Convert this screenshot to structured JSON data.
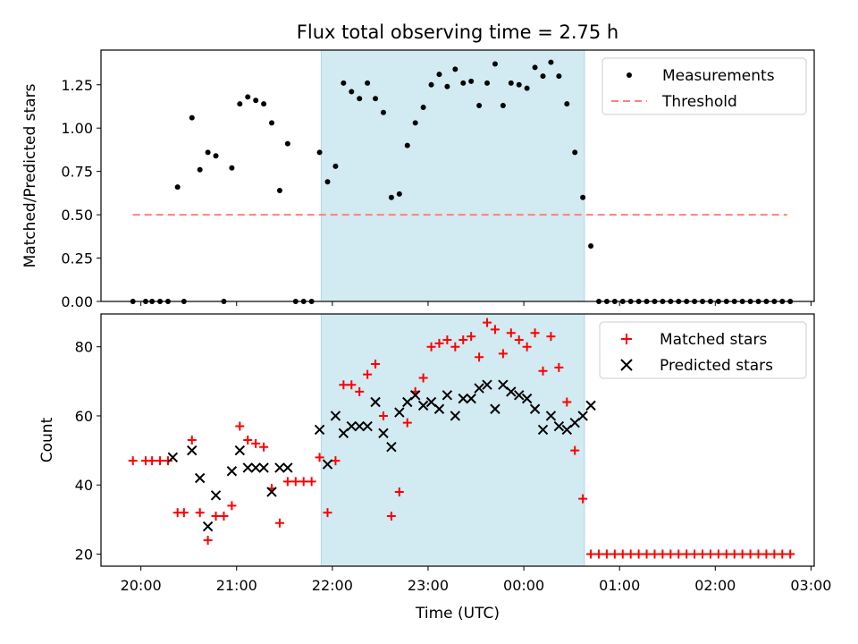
{
  "title": "Flux total observing time = 2.75 h",
  "colors": {
    "observing_window": "#add8e6",
    "threshold": "#ff7f7f",
    "measurements": "#000000",
    "matched": "#ff0000",
    "predicted": "#000000"
  },
  "chart_data": [
    {
      "type": "scatter",
      "title": "Flux total observing time = 2.75 h",
      "xlabel": "",
      "ylabel": "Matched/Predicted stars",
      "xlim": [
        "19:35",
        "03:02"
      ],
      "ylim": [
        0,
        1.45
      ],
      "yticks": [
        "0.00",
        "0.25",
        "0.50",
        "0.75",
        "1.00",
        "1.25"
      ],
      "xticks": [
        "20:00",
        "21:00",
        "22:00",
        "23:00",
        "00:00",
        "01:00",
        "02:00",
        "03:00"
      ],
      "xtick_labels_visible": false,
      "legend_position": "top-right",
      "shaded_region": {
        "from": "21:53",
        "to": "00:38"
      },
      "threshold": {
        "name": "Threshold",
        "value": 0.5,
        "from": "19:55",
        "to": "02:45"
      },
      "series": [
        {
          "name": "Measurements",
          "marker": "dot",
          "points": [
            [
              "19:55",
              0.0
            ],
            [
              "20:03",
              0.0
            ],
            [
              "20:07",
              0.0
            ],
            [
              "20:12",
              0.0
            ],
            [
              "20:17",
              0.0
            ],
            [
              "20:23",
              0.66
            ],
            [
              "20:27",
              0.0
            ],
            [
              "20:32",
              1.06
            ],
            [
              "20:37",
              0.76
            ],
            [
              "20:42",
              0.86
            ],
            [
              "20:47",
              0.84
            ],
            [
              "20:52",
              0.0
            ],
            [
              "20:57",
              0.77
            ],
            [
              "21:02",
              1.14
            ],
            [
              "21:07",
              1.18
            ],
            [
              "21:12",
              1.16
            ],
            [
              "21:17",
              1.14
            ],
            [
              "21:22",
              1.03
            ],
            [
              "21:27",
              0.64
            ],
            [
              "21:32",
              0.91
            ],
            [
              "21:37",
              0.0
            ],
            [
              "21:42",
              0.0
            ],
            [
              "21:47",
              0.0
            ],
            [
              "21:52",
              0.86
            ],
            [
              "21:57",
              0.69
            ],
            [
              "22:02",
              0.78
            ],
            [
              "22:07",
              1.26
            ],
            [
              "22:12",
              1.21
            ],
            [
              "22:17",
              1.17
            ],
            [
              "22:22",
              1.26
            ],
            [
              "22:27",
              1.17
            ],
            [
              "22:32",
              1.09
            ],
            [
              "22:37",
              0.6
            ],
            [
              "22:42",
              0.62
            ],
            [
              "22:47",
              0.9
            ],
            [
              "22:52",
              1.03
            ],
            [
              "22:57",
              1.12
            ],
            [
              "23:02",
              1.25
            ],
            [
              "23:07",
              1.31
            ],
            [
              "23:12",
              1.24
            ],
            [
              "23:17",
              1.34
            ],
            [
              "23:22",
              1.26
            ],
            [
              "23:27",
              1.27
            ],
            [
              "23:32",
              1.13
            ],
            [
              "23:37",
              1.26
            ],
            [
              "23:42",
              1.37
            ],
            [
              "23:47",
              1.13
            ],
            [
              "23:52",
              1.26
            ],
            [
              "23:57",
              1.25
            ],
            [
              "00:02",
              1.23
            ],
            [
              "00:07",
              1.35
            ],
            [
              "00:12",
              1.3
            ],
            [
              "00:17",
              1.38
            ],
            [
              "00:22",
              1.3
            ],
            [
              "00:27",
              1.14
            ],
            [
              "00:32",
              0.86
            ],
            [
              "00:37",
              0.6
            ],
            [
              "00:42",
              0.32
            ],
            [
              "00:47",
              0.0
            ],
            [
              "00:52",
              0.0
            ],
            [
              "00:57",
              0.0
            ],
            [
              "01:02",
              0.0
            ],
            [
              "01:07",
              0.0
            ],
            [
              "01:12",
              0.0
            ],
            [
              "01:17",
              0.0
            ],
            [
              "01:22",
              0.0
            ],
            [
              "01:27",
              0.0
            ],
            [
              "01:32",
              0.0
            ],
            [
              "01:37",
              0.0
            ],
            [
              "01:42",
              0.0
            ],
            [
              "01:47",
              0.0
            ],
            [
              "01:52",
              0.0
            ],
            [
              "01:57",
              0.0
            ],
            [
              "02:02",
              0.0
            ],
            [
              "02:07",
              0.0
            ],
            [
              "02:12",
              0.0
            ],
            [
              "02:17",
              0.0
            ],
            [
              "02:22",
              0.0
            ],
            [
              "02:27",
              0.0
            ],
            [
              "02:32",
              0.0
            ],
            [
              "02:37",
              0.0
            ],
            [
              "02:42",
              0.0
            ],
            [
              "02:47",
              0.0
            ]
          ]
        },
        {
          "name": "Threshold",
          "marker": "dashed-line",
          "points": [
            [
              "19:55",
              0.5
            ],
            [
              "02:45",
              0.5
            ]
          ]
        }
      ]
    },
    {
      "type": "scatter",
      "title": "",
      "xlabel": "Time (UTC)",
      "ylabel": "Count",
      "xlim": [
        "19:35",
        "03:02"
      ],
      "ylim": [
        16.5,
        89.5
      ],
      "yticks": [
        "20",
        "40",
        "60",
        "80"
      ],
      "xticks": [
        "20:00",
        "21:00",
        "22:00",
        "23:00",
        "00:00",
        "01:00",
        "02:00",
        "03:00"
      ],
      "legend_position": "top-right",
      "shaded_region": {
        "from": "21:53",
        "to": "00:38"
      },
      "series": [
        {
          "name": "Matched stars",
          "marker": "plus",
          "points": [
            [
              "19:55",
              47
            ],
            [
              "20:03",
              47
            ],
            [
              "20:07",
              47
            ],
            [
              "20:12",
              47
            ],
            [
              "20:17",
              47
            ],
            [
              "20:23",
              32
            ],
            [
              "20:27",
              32
            ],
            [
              "20:32",
              53
            ],
            [
              "20:37",
              32
            ],
            [
              "20:42",
              24
            ],
            [
              "20:47",
              31
            ],
            [
              "20:52",
              31
            ],
            [
              "20:57",
              34
            ],
            [
              "21:02",
              57
            ],
            [
              "21:07",
              53
            ],
            [
              "21:12",
              52
            ],
            [
              "21:17",
              51
            ],
            [
              "21:22",
              39
            ],
            [
              "21:27",
              29
            ],
            [
              "21:32",
              41
            ],
            [
              "21:37",
              41
            ],
            [
              "21:42",
              41
            ],
            [
              "21:47",
              41
            ],
            [
              "21:52",
              48
            ],
            [
              "21:57",
              32
            ],
            [
              "22:02",
              47
            ],
            [
              "22:07",
              69
            ],
            [
              "22:12",
              69
            ],
            [
              "22:17",
              67
            ],
            [
              "22:22",
              72
            ],
            [
              "22:27",
              75
            ],
            [
              "22:32",
              60
            ],
            [
              "22:37",
              31
            ],
            [
              "22:42",
              38
            ],
            [
              "22:47",
              58
            ],
            [
              "22:52",
              67
            ],
            [
              "22:57",
              71
            ],
            [
              "23:02",
              80
            ],
            [
              "23:07",
              81
            ],
            [
              "23:12",
              82
            ],
            [
              "23:17",
              80
            ],
            [
              "23:22",
              82
            ],
            [
              "23:27",
              83
            ],
            [
              "23:32",
              77
            ],
            [
              "23:37",
              87
            ],
            [
              "23:42",
              85
            ],
            [
              "23:47",
              78
            ],
            [
              "23:52",
              84
            ],
            [
              "23:57",
              82
            ],
            [
              "00:02",
              80
            ],
            [
              "00:07",
              84
            ],
            [
              "00:12",
              73
            ],
            [
              "00:17",
              83
            ],
            [
              "00:22",
              74
            ],
            [
              "00:27",
              64
            ],
            [
              "00:32",
              50
            ],
            [
              "00:37",
              36
            ],
            [
              "00:42",
              20
            ],
            [
              "00:47",
              20
            ],
            [
              "00:52",
              20
            ],
            [
              "00:57",
              20
            ],
            [
              "01:02",
              20
            ],
            [
              "01:07",
              20
            ],
            [
              "01:12",
              20
            ],
            [
              "01:17",
              20
            ],
            [
              "01:22",
              20
            ],
            [
              "01:27",
              20
            ],
            [
              "01:32",
              20
            ],
            [
              "01:37",
              20
            ],
            [
              "01:42",
              20
            ],
            [
              "01:47",
              20
            ],
            [
              "01:52",
              20
            ],
            [
              "01:57",
              20
            ],
            [
              "02:02",
              20
            ],
            [
              "02:07",
              20
            ],
            [
              "02:12",
              20
            ],
            [
              "02:17",
              20
            ],
            [
              "02:22",
              20
            ],
            [
              "02:27",
              20
            ],
            [
              "02:32",
              20
            ],
            [
              "02:37",
              20
            ],
            [
              "02:42",
              20
            ],
            [
              "02:47",
              20
            ]
          ]
        },
        {
          "name": "Predicted stars",
          "marker": "x",
          "points": [
            [
              "20:20",
              48
            ],
            [
              "20:32",
              50
            ],
            [
              "20:37",
              42
            ],
            [
              "20:42",
              28
            ],
            [
              "20:47",
              37
            ],
            [
              "20:57",
              44
            ],
            [
              "21:02",
              50
            ],
            [
              "21:07",
              45
            ],
            [
              "21:12",
              45
            ],
            [
              "21:17",
              45
            ],
            [
              "21:22",
              38
            ],
            [
              "21:27",
              45
            ],
            [
              "21:32",
              45
            ],
            [
              "21:52",
              56
            ],
            [
              "21:57",
              46
            ],
            [
              "22:02",
              60
            ],
            [
              "22:07",
              55
            ],
            [
              "22:12",
              57
            ],
            [
              "22:17",
              57
            ],
            [
              "22:22",
              57
            ],
            [
              "22:27",
              64
            ],
            [
              "22:32",
              55
            ],
            [
              "22:37",
              51
            ],
            [
              "22:42",
              61
            ],
            [
              "22:47",
              64
            ],
            [
              "22:52",
              66
            ],
            [
              "22:57",
              63
            ],
            [
              "23:02",
              64
            ],
            [
              "23:07",
              62
            ],
            [
              "23:12",
              66
            ],
            [
              "23:17",
              60
            ],
            [
              "23:22",
              65
            ],
            [
              "23:27",
              65
            ],
            [
              "23:32",
              68
            ],
            [
              "23:37",
              69
            ],
            [
              "23:42",
              62
            ],
            [
              "23:47",
              69
            ],
            [
              "23:52",
              67
            ],
            [
              "23:57",
              66
            ],
            [
              "00:02",
              65
            ],
            [
              "00:07",
              62
            ],
            [
              "00:12",
              56
            ],
            [
              "00:17",
              60
            ],
            [
              "00:22",
              57
            ],
            [
              "00:27",
              56
            ],
            [
              "00:32",
              58
            ],
            [
              "00:37",
              60
            ],
            [
              "00:42",
              63
            ]
          ]
        }
      ]
    }
  ]
}
